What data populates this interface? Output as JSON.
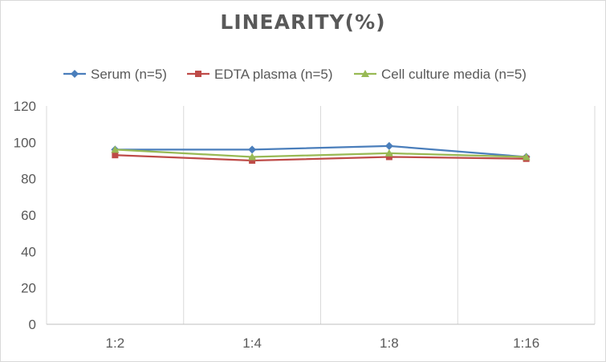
{
  "chart_data": {
    "type": "line",
    "title": "LINEARITY(%)",
    "xlabel": "",
    "ylabel": "",
    "categories": [
      "1:2",
      "1:4",
      "1:8",
      "1:16"
    ],
    "ylim": [
      0,
      120
    ],
    "yticks": [
      0,
      20,
      40,
      60,
      80,
      100,
      120
    ],
    "grid": "vertical category gridlines, light gray",
    "legend_position": "top",
    "series": [
      {
        "name": "Serum (n=5)",
        "values": [
          96,
          96,
          98,
          92
        ],
        "color": "#4a7ebb",
        "marker": "diamond"
      },
      {
        "name": "EDTA plasma (n=5)",
        "values": [
          93,
          90,
          92,
          91
        ],
        "color": "#be4b48",
        "marker": "square"
      },
      {
        "name": "Cell culture media (n=5)",
        "values": [
          96,
          92,
          94,
          92
        ],
        "color": "#98b954",
        "marker": "triangle"
      }
    ]
  }
}
